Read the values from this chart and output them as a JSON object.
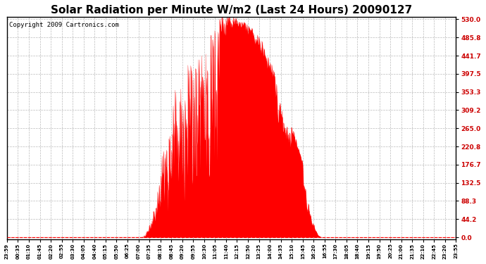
{
  "title": "Solar Radiation per Minute W/m2 (Last 24 Hours) 20090127",
  "copyright": "Copyright 2009 Cartronics.com",
  "yticks": [
    0.0,
    44.2,
    88.3,
    132.5,
    176.7,
    220.8,
    265.0,
    309.2,
    353.3,
    397.5,
    441.7,
    485.8,
    530.0
  ],
  "ymax": 530.0,
  "ymin": 0.0,
  "bar_color": "#ff0000",
  "bg_color": "#ffffff",
  "grid_color": "#bbbbbb",
  "baseline_color": "#ff0000",
  "title_fontsize": 11,
  "copyright_fontsize": 6.5,
  "n_points": 1440,
  "xtick_labels": [
    "23:59",
    "00:35",
    "01:10",
    "01:45",
    "02:20",
    "02:55",
    "03:30",
    "04:05",
    "04:40",
    "05:15",
    "05:50",
    "06:25",
    "07:00",
    "07:35",
    "08:10",
    "08:45",
    "09:20",
    "09:55",
    "10:30",
    "11:05",
    "11:40",
    "12:15",
    "12:50",
    "13:25",
    "14:00",
    "14:35",
    "15:10",
    "15:45",
    "16:20",
    "16:55",
    "17:30",
    "18:05",
    "18:40",
    "19:15",
    "19:50",
    "20:25",
    "21:00",
    "21:35",
    "22:10",
    "22:45",
    "23:20",
    "23:55"
  ],
  "n_xticks": 42,
  "sunrise_minute": 430,
  "sunset_minute": 1010,
  "peak_minute": 755,
  "peak_value": 530.0
}
